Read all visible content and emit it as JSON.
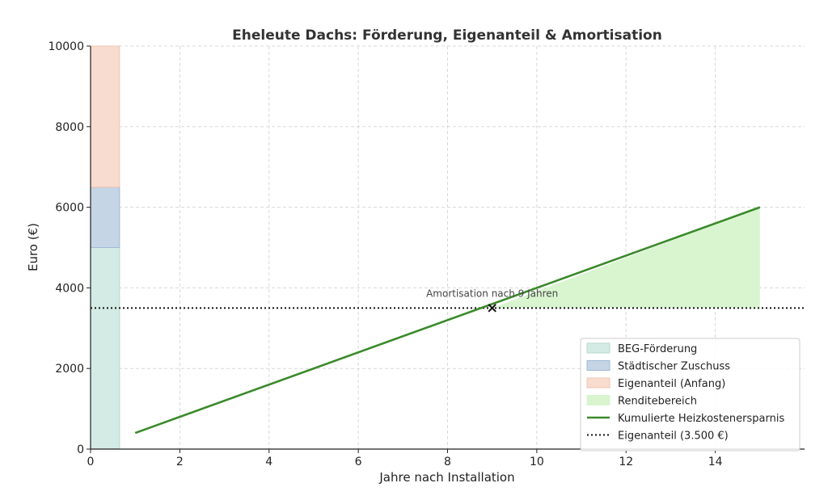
{
  "chart_data": {
    "type": "line",
    "title": "Eheleute Dachs: Förderung, Eigenanteil & Amortisation",
    "xlabel": "Jahre nach Installation",
    "ylabel": "Euro (€)",
    "xlim": [
      0,
      16
    ],
    "ylim": [
      0,
      10000
    ],
    "x_ticks": [
      0,
      2,
      4,
      6,
      8,
      10,
      12,
      14
    ],
    "y_ticks": [
      0,
      2000,
      4000,
      6000,
      8000,
      10000
    ],
    "x_tick_labels": [
      "0",
      "2",
      "4",
      "6",
      "8",
      "10",
      "12",
      "14"
    ],
    "y_tick_labels": [
      "0",
      "2000",
      "4000",
      "6000",
      "8000",
      "10000"
    ],
    "grid": true,
    "legend_position": "lower-right",
    "stacked_bar": {
      "x_range": [
        0,
        0.65
      ],
      "segments": [
        {
          "name": "BEG-Förderung",
          "from": 0,
          "to": 5000,
          "color": "#d3ebe4",
          "edge": "#b5d9cd"
        },
        {
          "name": "Städtischer Zuschuss",
          "from": 5000,
          "to": 6500,
          "color": "#c5d5e6",
          "edge": "#9fb9d4"
        },
        {
          "name": "Eigenanteil (Anfang)",
          "from": 6500,
          "to": 10000,
          "color": "#f8dccf",
          "edge": "#f0c4b0"
        }
      ]
    },
    "series": [
      {
        "name": "Kumulierte Heizkostenersparnis",
        "type": "line",
        "color": "#3a8a2a",
        "x": [
          1,
          15
        ],
        "y": [
          400,
          6000
        ]
      },
      {
        "name": "Eigenanteil (3.500 €)",
        "type": "hline",
        "style": "dotted",
        "color": "#111111",
        "y": 3500
      }
    ],
    "fill_area": {
      "name": "Renditebereich",
      "color": "#d9f5d0",
      "x_from": 9,
      "x_to": 15,
      "y_base": 3500
    },
    "marker": {
      "x": 9,
      "y": 3500,
      "symbol": "x"
    },
    "annotation": {
      "text": "Amortisation nach 9 Jahren",
      "x": 9,
      "y": 3500
    },
    "legend": [
      {
        "label": "BEG-Förderung",
        "kind": "patch",
        "color": "#d3ebe4",
        "edge": "#b5d9cd"
      },
      {
        "label": "Städtischer Zuschuss",
        "kind": "patch",
        "color": "#c5d5e6",
        "edge": "#9fb9d4"
      },
      {
        "label": "Eigenanteil (Anfang)",
        "kind": "patch",
        "color": "#f8dccf",
        "edge": "#f0c4b0"
      },
      {
        "label": "Renditebereich",
        "kind": "patch",
        "color": "#d9f5d0",
        "edge": "#d9f5d0"
      },
      {
        "label": "Kumulierte Heizkostenersparnis",
        "kind": "line",
        "color": "#3a8a2a"
      },
      {
        "label": "Eigenanteil (3.500 €)",
        "kind": "dotted",
        "color": "#111111"
      }
    ]
  }
}
